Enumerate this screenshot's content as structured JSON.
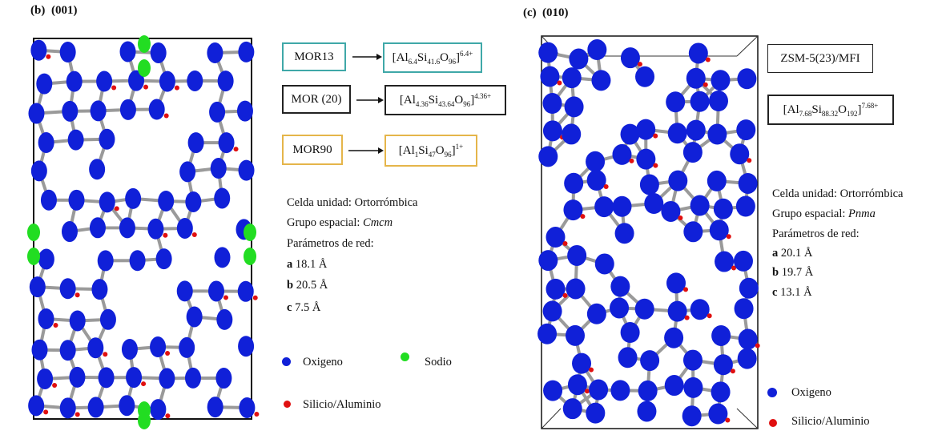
{
  "left": {
    "panel": "(b)",
    "view": "(001)",
    "entries": [
      {
        "name": "MOR13",
        "formula": [
          "[Al",
          "6.4",
          "Si",
          "41.6",
          "O",
          "96",
          "]",
          "6.4+"
        ]
      },
      {
        "name": "MOR (20)",
        "formula": [
          "[Al",
          "4.36",
          "Si",
          "43.64",
          "O",
          "96",
          "]",
          "4.36+"
        ]
      },
      {
        "name": "MOR90",
        "formula": [
          "[Al",
          "1",
          "Si",
          "47",
          "O",
          "96",
          "]",
          "1+"
        ]
      }
    ],
    "cell": "Celda unidad: Ortorrómbica",
    "group_label": "Grupo espacial:",
    "group": "Cmcm",
    "params_label": "Parámetros de red:",
    "params": [
      [
        "a",
        "18.1 Å"
      ],
      [
        "b",
        "20.5 Å"
      ],
      [
        "c",
        "7.5 Å"
      ]
    ],
    "legend": {
      "oxygen": "Oxigeno",
      "sodium": "Sodio",
      "si_al": "Silicio/Aluminio"
    }
  },
  "right": {
    "panel": "(c)",
    "view": "(010)",
    "name": "ZSM-5(23)/MFI",
    "formula": [
      "[Al",
      "7.68",
      "Si",
      "88.32",
      "O",
      "192",
      "]",
      "7.68+"
    ],
    "cell": "Celda unidad: Ortorrómbica",
    "group_label": "Grupo espacial:",
    "group": "Pnma",
    "params_label": "Parámetros de red:",
    "params": [
      [
        "a",
        "20.1 Å"
      ],
      [
        "b",
        "19.7 Å"
      ],
      [
        "c",
        "13.1 Å"
      ]
    ],
    "legend": {
      "oxygen": "Oxigeno",
      "si_al": "Silicio/Aluminio"
    }
  }
}
